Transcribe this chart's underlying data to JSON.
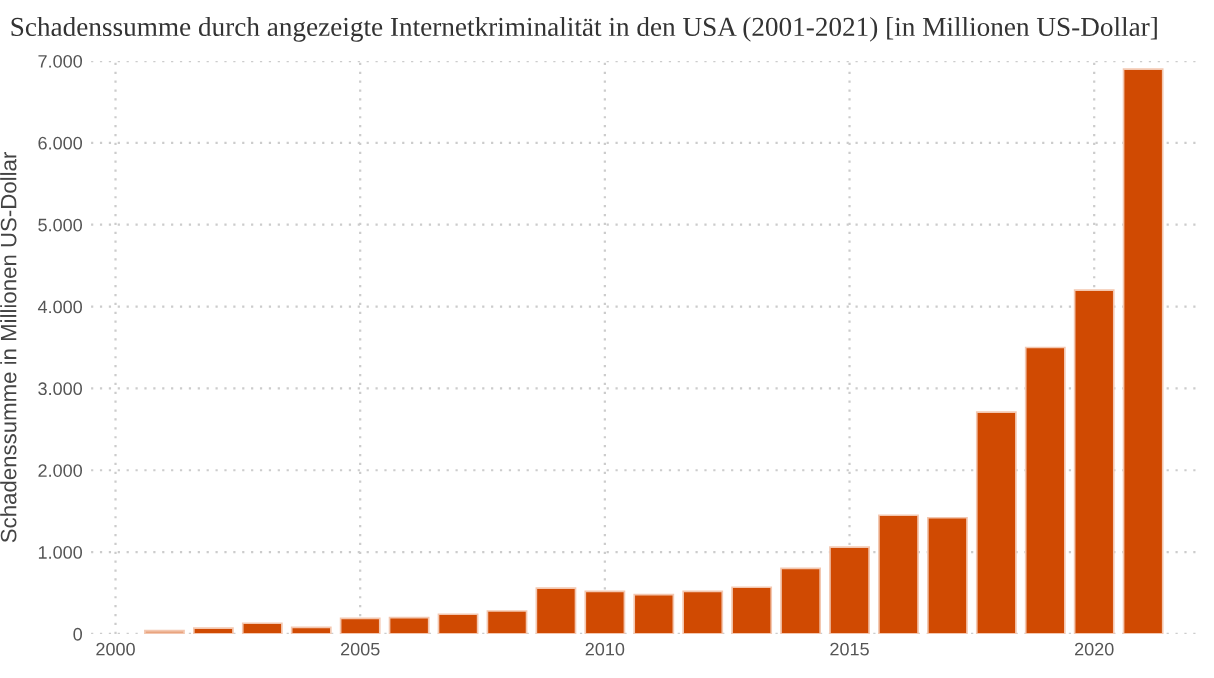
{
  "chart_data": {
    "type": "bar",
    "title": "Schadenssumme durch angezeigte Internetkriminalität in den USA (2001-2021) [in Millionen US-Dollar]",
    "ylabel": "Schadenssumme in Millionen US-Dollar",
    "x": [
      2001,
      2002,
      2003,
      2004,
      2005,
      2006,
      2007,
      2008,
      2009,
      2010,
      2011,
      2012,
      2013,
      2014,
      2015,
      2016,
      2017,
      2018,
      2019,
      2020,
      2021
    ],
    "values": [
      40,
      70,
      130,
      80,
      190,
      200,
      240,
      280,
      560,
      520,
      480,
      520,
      570,
      800,
      1060,
      1450,
      1420,
      2710,
      3500,
      4200,
      6900
    ],
    "colors": [
      "#e9a47f",
      "#d04a02",
      "#d04a02",
      "#d04a02",
      "#d04a02",
      "#d04a02",
      "#d04a02",
      "#d04a02",
      "#d04a02",
      "#d04a02",
      "#d04a02",
      "#d04a02",
      "#d04a02",
      "#d04a02",
      "#d04a02",
      "#d04a02",
      "#d04a02",
      "#d04a02",
      "#d04a02",
      "#d04a02",
      "#d04a02"
    ],
    "xlim": [
      1999.5,
      2022.2
    ],
    "xticks": [
      2000,
      2005,
      2010,
      2015,
      2020
    ],
    "ylim": [
      0,
      7000
    ],
    "yticks": [
      {
        "value": 0,
        "label": "0"
      },
      {
        "value": 1000,
        "label": "1.000"
      },
      {
        "value": 2000,
        "label": "2.000"
      },
      {
        "value": 3000,
        "label": "3.000"
      },
      {
        "value": 4000,
        "label": "4.000"
      },
      {
        "value": 5000,
        "label": "5.000"
      },
      {
        "value": 6000,
        "label": "6.000"
      },
      {
        "value": 7000,
        "label": "7.000"
      }
    ],
    "grid": true
  }
}
